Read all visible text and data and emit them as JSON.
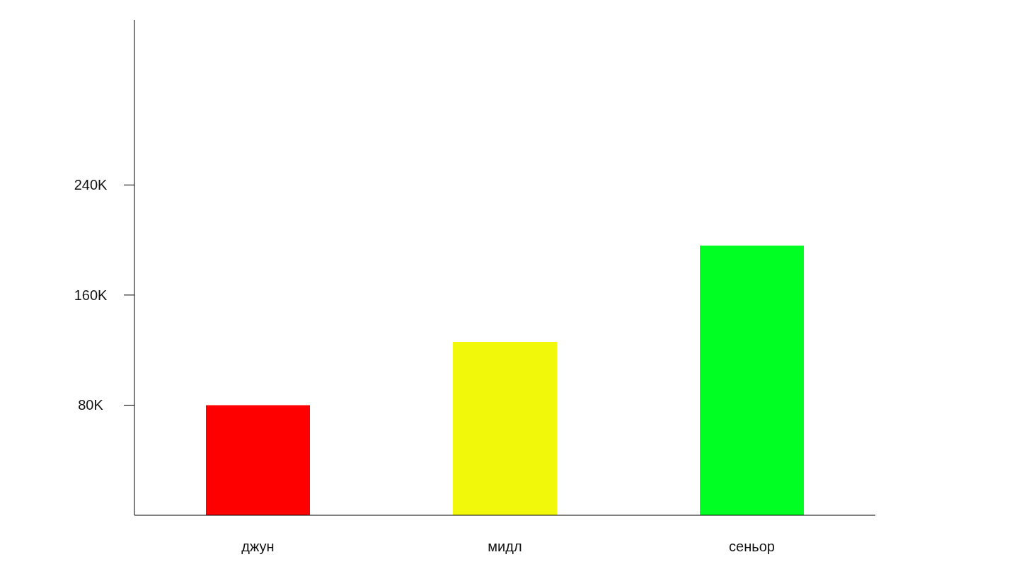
{
  "chart_data": {
    "type": "bar",
    "categories": [
      "джун",
      "мидл",
      "сеньор"
    ],
    "values": [
      80000,
      126000,
      196000
    ],
    "colors": [
      "#ff0000",
      "#f2f80a",
      "#00ff22"
    ],
    "ylim": [
      0,
      360000
    ],
    "yticks": [
      {
        "value": 80000,
        "label": "80K"
      },
      {
        "value": 160000,
        "label": "160K"
      },
      {
        "value": 240000,
        "label": "240K"
      }
    ]
  }
}
